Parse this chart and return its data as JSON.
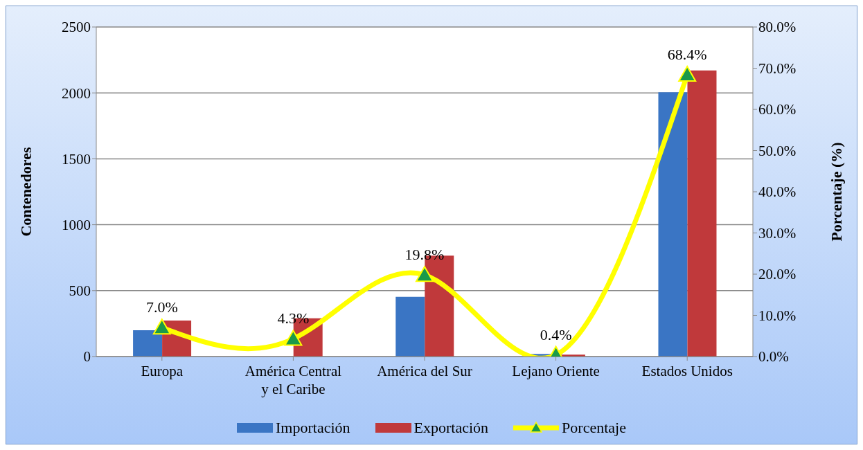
{
  "chart_data": {
    "type": "bar",
    "categories": [
      "Europa",
      "América Central y el Caribe",
      "América del Sur",
      "Lejano Oriente",
      "Estados Unidos"
    ],
    "series": [
      {
        "name": "Importación",
        "color": "#3a75c4",
        "values": [
          200,
          0,
          453,
          20,
          2005
        ]
      },
      {
        "name": "Exportación",
        "color": "#c0393b",
        "values": [
          273,
          290,
          765,
          15,
          2170
        ]
      },
      {
        "name": "Porcentaje",
        "type": "line",
        "axis": "y2",
        "color": "#ffff00",
        "marker": "triangle",
        "values": [
          7.0,
          4.3,
          19.8,
          0.4,
          68.4
        ],
        "value_labels": [
          "7.0%",
          "4.3%",
          "19.8%",
          "0.4%",
          "68.4%"
        ]
      }
    ],
    "ylabel": "Contenedores",
    "y2label": "Porcentaje (%)",
    "ylim": [
      0,
      2500
    ],
    "yticks": [
      0,
      500,
      1000,
      1500,
      2000,
      2500
    ],
    "y2lim": [
      0,
      80
    ],
    "y2ticks": [
      {
        "value": 0,
        "label": "0.0%"
      },
      {
        "value": 10,
        "label": "10.0%"
      },
      {
        "value": 20,
        "label": "20.0%"
      },
      {
        "value": 30,
        "label": "30.0%"
      },
      {
        "value": 40,
        "label": "40.0%"
      },
      {
        "value": 50,
        "label": "50.0%"
      },
      {
        "value": 60,
        "label": "60.0%"
      },
      {
        "value": 70,
        "label": "70.0%"
      },
      {
        "value": 80,
        "label": "80.0%"
      }
    ],
    "grid": "y",
    "legend": "bottom"
  }
}
